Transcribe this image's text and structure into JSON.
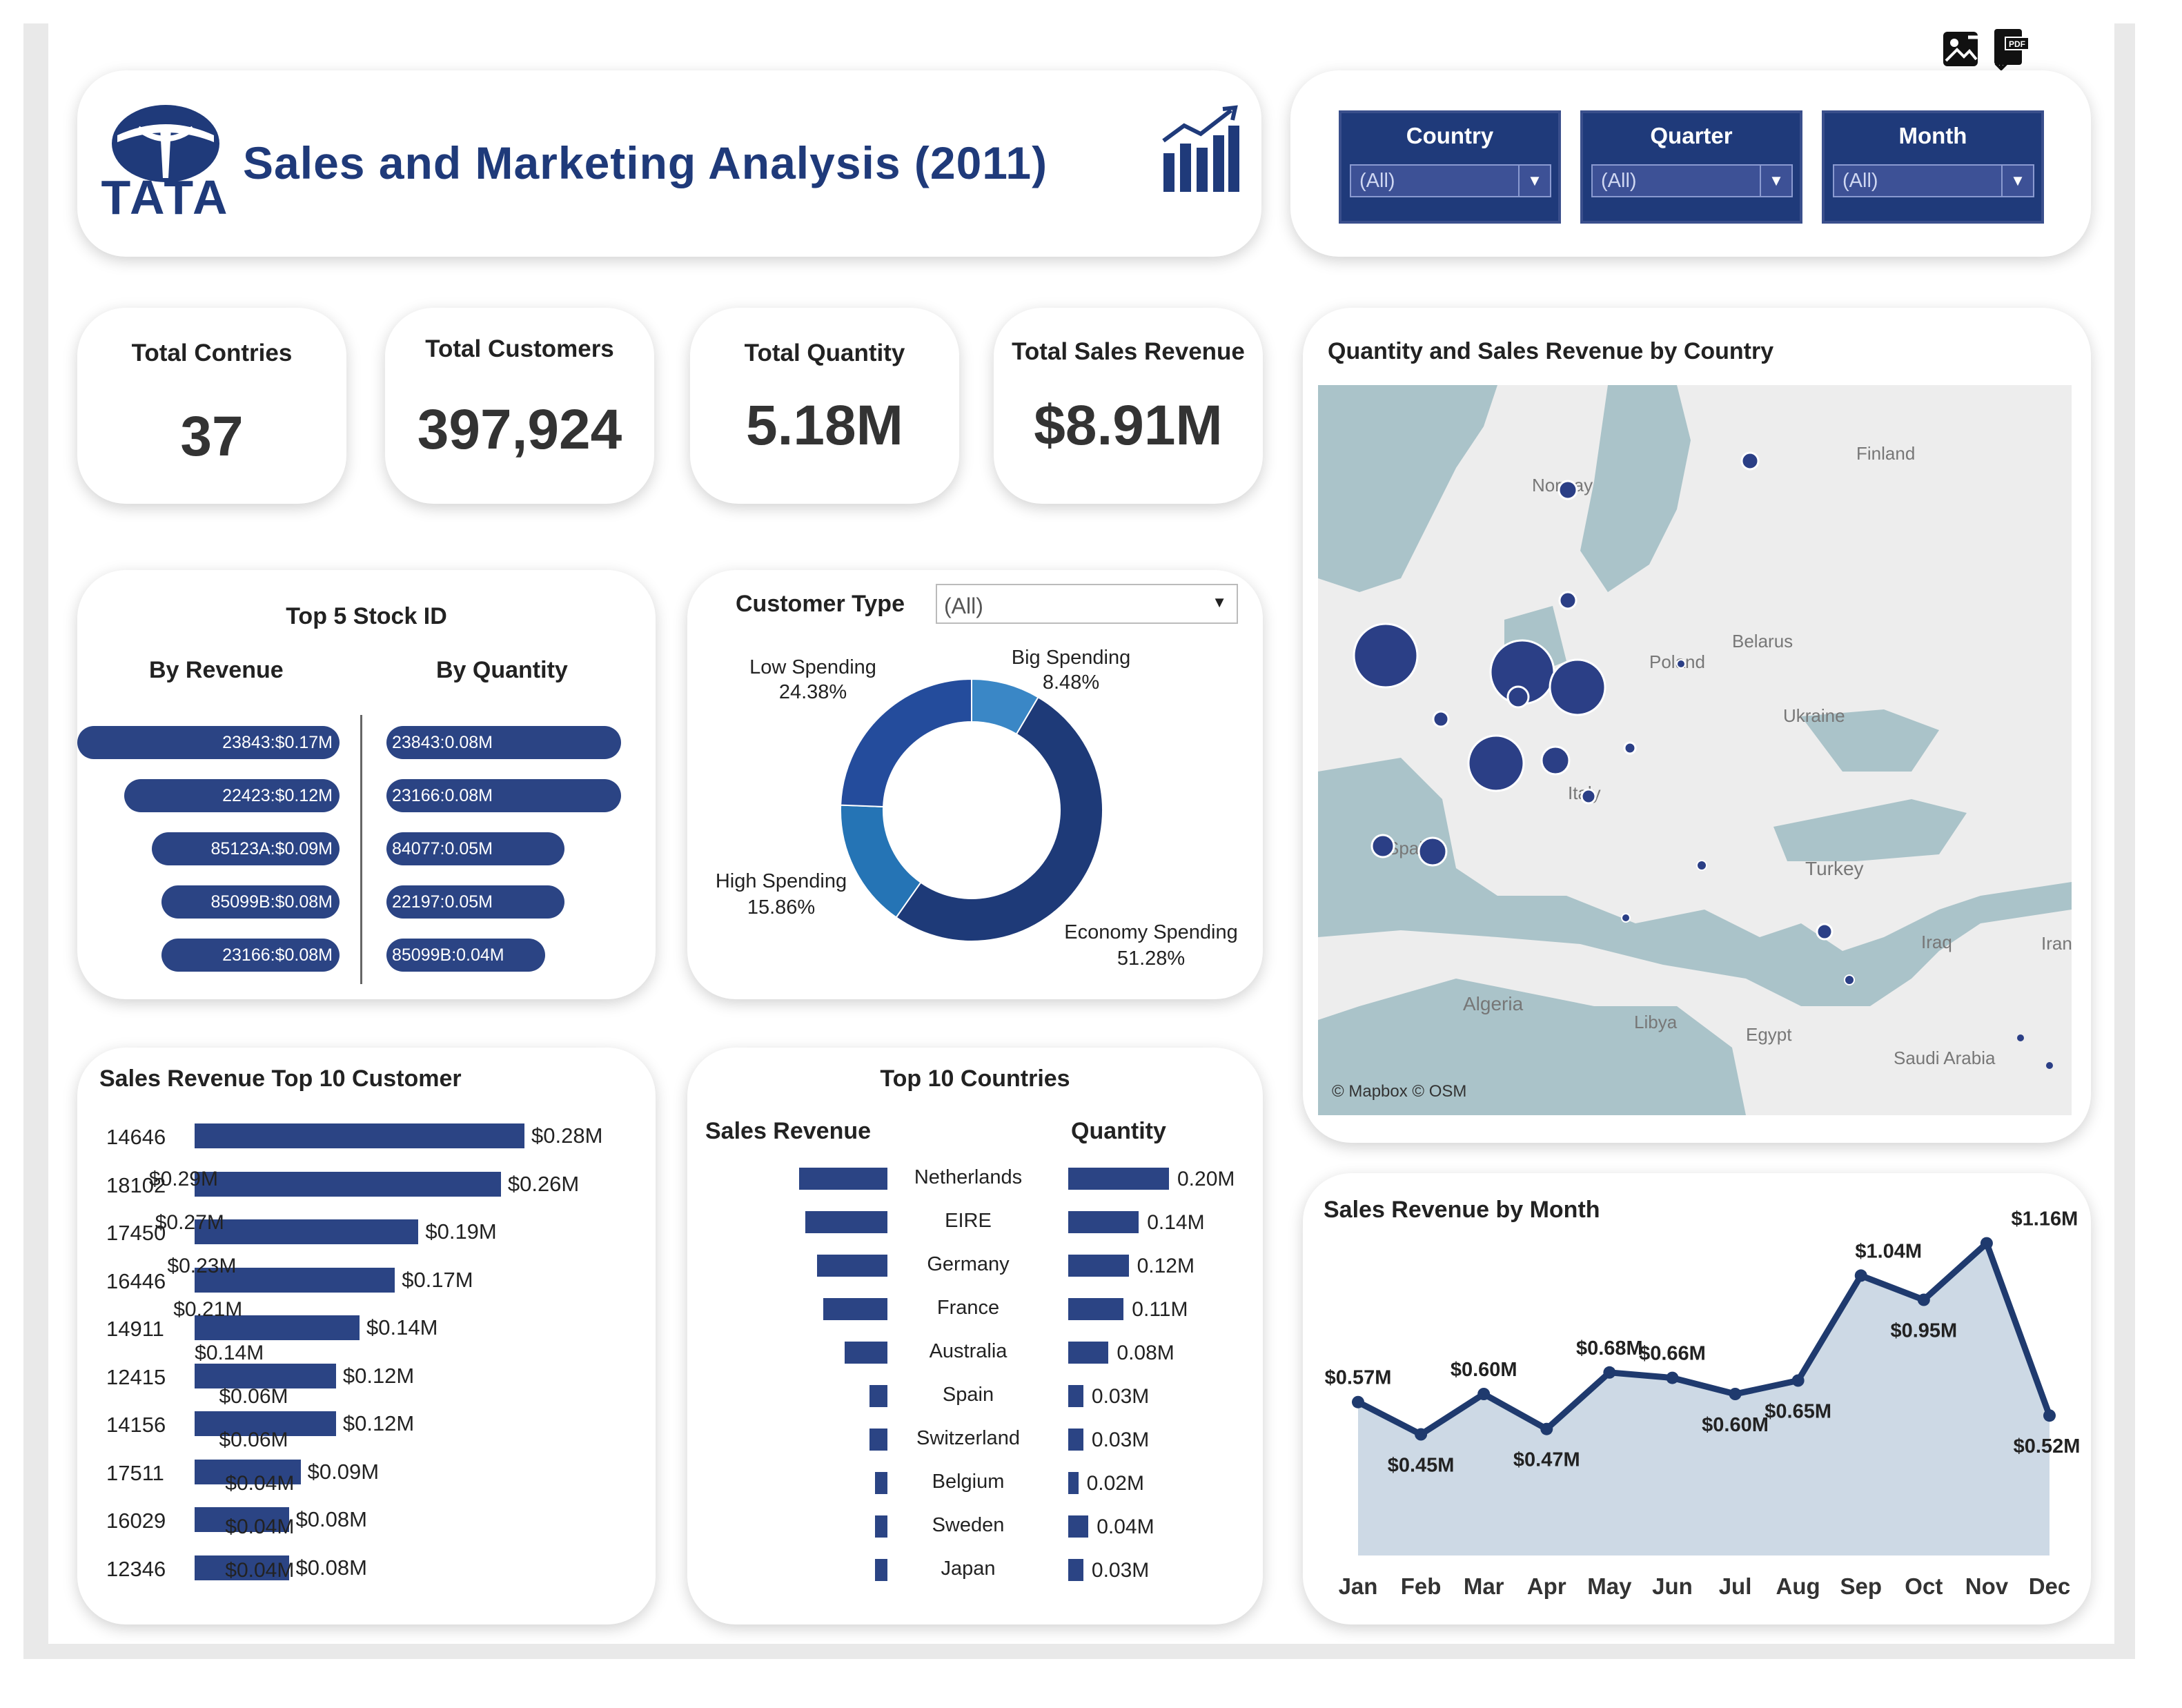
{
  "header": {
    "logo_text": "TATA",
    "title": "Sales and Marketing Analysis (2011)"
  },
  "toolbar": {
    "icons": [
      "image-download-icon",
      "pdf-download-icon"
    ]
  },
  "filters": [
    {
      "label": "Country",
      "value": "(All)"
    },
    {
      "label": "Quarter",
      "value": "(All)"
    },
    {
      "label": "Month",
      "value": "(All)"
    }
  ],
  "kpis": [
    {
      "label": "Total Contries",
      "value": "37"
    },
    {
      "label": "Total Customers",
      "value": "397,924"
    },
    {
      "label": "Total Quantity",
      "value": "5.18M"
    },
    {
      "label": "Total Sales Revenue",
      "value": "$8.91M"
    }
  ],
  "top5": {
    "title": "Top 5 Stock ID",
    "by_revenue_label": "By Revenue",
    "by_quantity_label": "By Quantity",
    "by_revenue": [
      {
        "label": "23843:$0.17M",
        "value": 0.17
      },
      {
        "label": "22423:$0.12M",
        "value": 0.12
      },
      {
        "label": "85123A:$0.09M",
        "value": 0.09
      },
      {
        "label": "85099B:$0.08M",
        "value": 0.08
      },
      {
        "label": "23166:$0.08M",
        "value": 0.08
      }
    ],
    "by_quantity": [
      {
        "label": "23843:0.08M",
        "value": 0.08
      },
      {
        "label": "23166:0.08M",
        "value": 0.08
      },
      {
        "label": "84077:0.05M",
        "value": 0.05
      },
      {
        "label": "22197:0.05M",
        "value": 0.05
      },
      {
        "label": "85099B:0.04M",
        "value": 0.04
      }
    ]
  },
  "customer_type": {
    "title": "Customer Type",
    "filter_value": "(All)",
    "segments": [
      {
        "name": "Big Spending",
        "pct_label": "8.48%",
        "value": 8.48,
        "color": "#3a87c6"
      },
      {
        "name": "Economy Spending",
        "pct_label": "51.28%",
        "value": 51.28,
        "color": "#1e3a78"
      },
      {
        "name": "High Spending",
        "pct_label": "15.86%",
        "value": 15.86,
        "color": "#2574b5"
      },
      {
        "name": "Low Spending",
        "pct_label": "24.38%",
        "value": 24.38,
        "color": "#244c9c"
      }
    ]
  },
  "map": {
    "title": "Quantity and Sales Revenue by Country",
    "attribution": "© Mapbox © OSM",
    "labels": [
      "Finland",
      "Norway",
      "Belarus",
      "Poland",
      "Ukraine",
      "Italy",
      "Spain",
      "Turkey",
      "Iraq",
      "Iran",
      "Algeria",
      "Libya",
      "Egypt",
      "Saudi Arabia"
    ]
  },
  "top10_customers": {
    "title": "Sales Revenue Top 10 Customer",
    "rows": [
      {
        "id": "14646",
        "label": "$0.28M",
        "value": 0.28
      },
      {
        "id": "18102",
        "label": "$0.26M",
        "value": 0.26
      },
      {
        "id": "17450",
        "label": "$0.19M",
        "value": 0.19
      },
      {
        "id": "16446",
        "label": "$0.17M",
        "value": 0.17
      },
      {
        "id": "14911",
        "label": "$0.14M",
        "value": 0.14
      },
      {
        "id": "12415",
        "label": "$0.12M",
        "value": 0.12
      },
      {
        "id": "14156",
        "label": "$0.12M",
        "value": 0.12
      },
      {
        "id": "17511",
        "label": "$0.09M",
        "value": 0.09
      },
      {
        "id": "16029",
        "label": "$0.08M",
        "value": 0.08
      },
      {
        "id": "12346",
        "label": "$0.08M",
        "value": 0.08
      }
    ]
  },
  "top10_countries": {
    "title": "Top 10 Countries",
    "revenue_label": "Sales Revenue",
    "quantity_label": "Quantity",
    "rows": [
      {
        "country": "Netherlands",
        "rev_label": "$0.29M",
        "rev": 0.29,
        "qty_label": "0.20M",
        "qty": 0.2
      },
      {
        "country": "EIRE",
        "rev_label": "$0.27M",
        "rev": 0.27,
        "qty_label": "0.14M",
        "qty": 0.14
      },
      {
        "country": "Germany",
        "rev_label": "$0.23M",
        "rev": 0.23,
        "qty_label": "0.12M",
        "qty": 0.12
      },
      {
        "country": "France",
        "rev_label": "$0.21M",
        "rev": 0.21,
        "qty_label": "0.11M",
        "qty": 0.11
      },
      {
        "country": "Australia",
        "rev_label": "$0.14M",
        "rev": 0.14,
        "qty_label": "0.08M",
        "qty": 0.08
      },
      {
        "country": "Spain",
        "rev_label": "$0.06M",
        "rev": 0.06,
        "qty_label": "0.03M",
        "qty": 0.03
      },
      {
        "country": "Switzerland",
        "rev_label": "$0.06M",
        "rev": 0.06,
        "qty_label": "0.03M",
        "qty": 0.03
      },
      {
        "country": "Belgium",
        "rev_label": "$0.04M",
        "rev": 0.04,
        "qty_label": "0.02M",
        "qty": 0.02
      },
      {
        "country": "Sweden",
        "rev_label": "$0.04M",
        "rev": 0.04,
        "qty_label": "0.04M",
        "qty": 0.04
      },
      {
        "country": "Japan",
        "rev_label": "$0.04M",
        "rev": 0.04,
        "qty_label": "0.03M",
        "qty": 0.03
      }
    ]
  },
  "chart_data": {
    "type": "area",
    "title": "Sales Revenue by Month",
    "categories": [
      "Jan",
      "Feb",
      "Mar",
      "Apr",
      "May",
      "Jun",
      "Jul",
      "Aug",
      "Sep",
      "Oct",
      "Nov",
      "Dec"
    ],
    "values": [
      0.57,
      0.45,
      0.6,
      0.47,
      0.68,
      0.66,
      0.6,
      0.65,
      1.04,
      0.95,
      1.16,
      0.52
    ],
    "value_labels": [
      "$0.57M",
      "$0.45M",
      "$0.60M",
      "$0.47M",
      "$0.68M",
      "$0.66M",
      "$0.60M",
      "$0.65M",
      "$1.04M",
      "$0.95M",
      "$1.16M",
      "$0.52M"
    ],
    "ylim": [
      0,
      1.2
    ],
    "line_color": "#1f3a6e",
    "fill_color": "#cdd9e5"
  }
}
